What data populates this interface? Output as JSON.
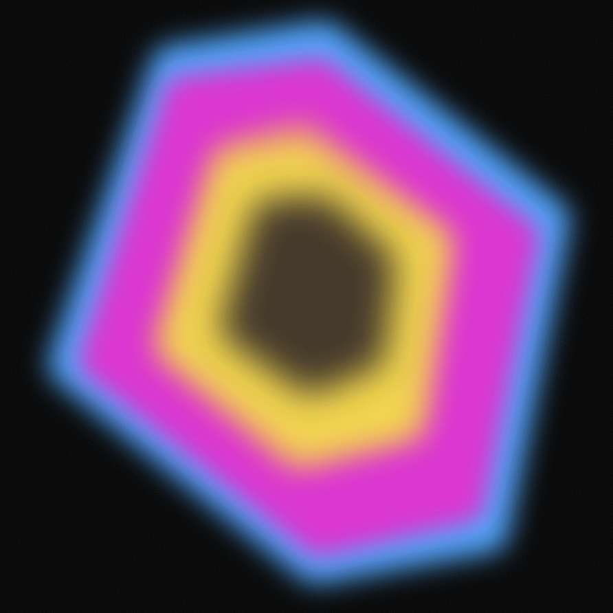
{
  "scene": {
    "subject": "blurred-glowing-rounded-hexagon",
    "colors": {
      "background": "#000000",
      "outer_glow": "#4aa6ff",
      "magenta_ring": "#dd2fd2",
      "inner_ring": "#f6d84a",
      "core": "#3e3123"
    }
  }
}
